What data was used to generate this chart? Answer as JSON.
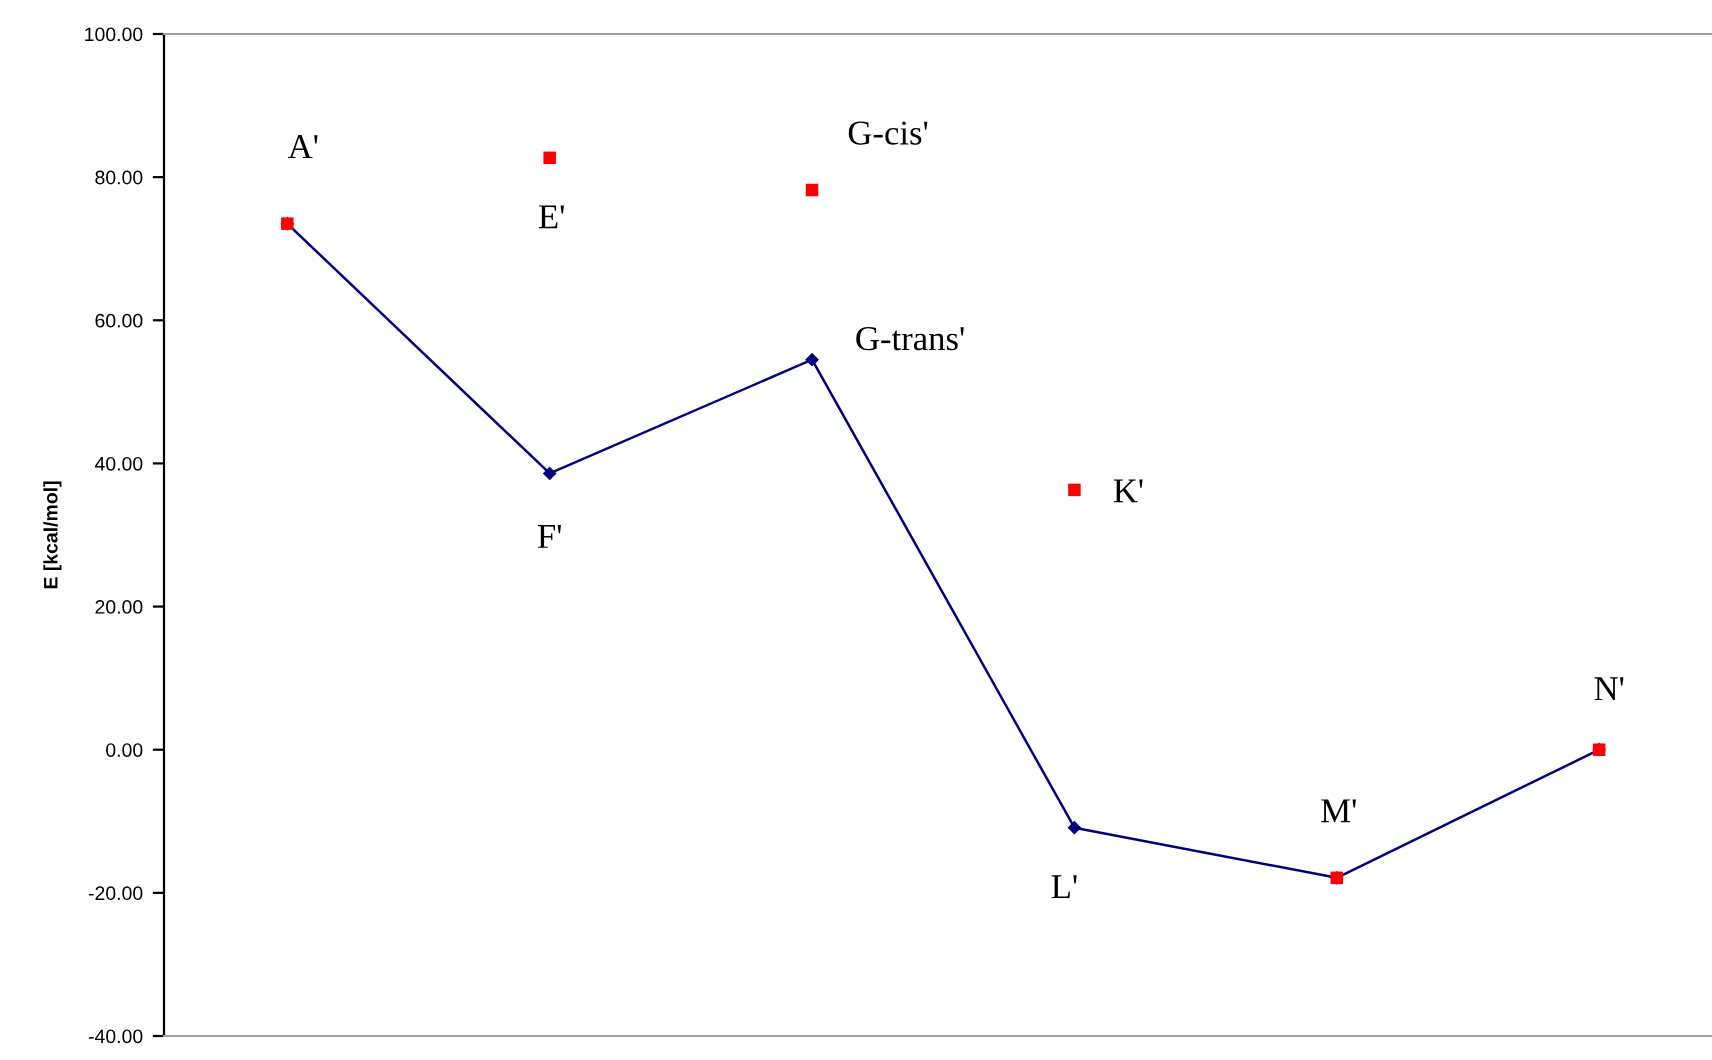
{
  "chart_data": {
    "type": "line",
    "ylabel": "E [kcal/mol]",
    "categories": [
      null,
      null,
      null,
      null,
      null,
      null
    ],
    "tick_labels": "y",
    "ylim": [
      -40,
      100
    ],
    "yticks": [
      {
        "value": -40,
        "label": "-40.00"
      },
      {
        "value": -20,
        "label": "-20.00"
      },
      {
        "value": 0,
        "label": "0.00"
      },
      {
        "value": 20,
        "label": "20.00"
      },
      {
        "value": 40,
        "label": "40.00"
      },
      {
        "value": 60,
        "label": "60.00"
      },
      {
        "value": 80,
        "label": "80.00"
      },
      {
        "value": 100,
        "label": "100.00"
      }
    ],
    "series": [
      {
        "color": "#000080",
        "marker": "diamond",
        "line_style": "solid",
        "values": [
          73.5,
          38.6,
          54.5,
          -10.9,
          -17.9,
          0
        ],
        "value_labels": [
          null,
          "F'",
          "G-trans'",
          "L'",
          null,
          null
        ]
      },
      {
        "type": "scatter",
        "color": "#ff0000",
        "marker": "square",
        "values": [
          73.5,
          82.7,
          78.2,
          36.3,
          -17.9,
          0
        ],
        "value_labels": [
          "A'",
          "E'",
          "G-cis'",
          "K'",
          "M'",
          "N'"
        ]
      }
    ]
  }
}
